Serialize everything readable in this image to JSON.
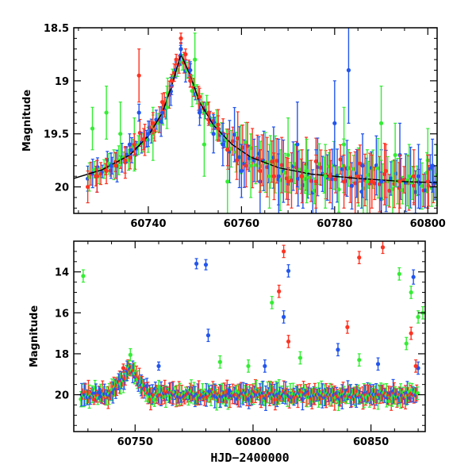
{
  "figure": {
    "background": "#ffffff"
  },
  "chart_data": [
    {
      "type": "scatter",
      "title": "",
      "xlabel": "",
      "ylabel": "Magnitude",
      "xlim": [
        60724,
        60802
      ],
      "ylim": [
        20.25,
        18.5
      ],
      "y_inverted": true,
      "grid": false,
      "xticks": [
        60740,
        60760,
        60780,
        60800
      ],
      "xtick_labels": [
        "60740",
        "60760",
        "60780",
        "60800"
      ],
      "yticks": [
        18.5,
        19,
        19.5,
        20
      ],
      "ytick_labels": [
        "18.5",
        "19",
        "19.5",
        "20"
      ],
      "error_bars": true,
      "series": [
        {
          "color": "#2255ee",
          "marker": "circle",
          "points": [
            [
              60729,
              19.9,
              0.15
            ],
            [
              60732,
              19.8,
              0.12
            ],
            [
              60736,
              19.6,
              0.1
            ],
            [
              60738,
              19.3,
              0.08
            ],
            [
              60740,
              19.5,
              0.12
            ],
            [
              60743,
              19.3,
              0.1
            ],
            [
              60745,
              19.05,
              0.08
            ],
            [
              60747,
              18.7,
              0.06
            ],
            [
              60749,
              18.9,
              0.08
            ],
            [
              60751,
              19.3,
              0.12
            ],
            [
              60754,
              19.5,
              0.18
            ],
            [
              60756,
              19.6,
              0.2
            ],
            [
              60760,
              19.85,
              0.25
            ],
            [
              60764,
              19.95,
              0.3
            ],
            [
              60768,
              19.9,
              0.35
            ],
            [
              60772,
              19.6,
              0.4
            ],
            [
              60776,
              19.95,
              0.3
            ],
            [
              60780,
              19.4,
              0.4
            ],
            [
              60783,
              18.9,
              0.5
            ],
            [
              60786,
              19.8,
              0.3
            ],
            [
              60790,
              19.95,
              0.3
            ],
            [
              60794,
              19.7,
              0.3
            ],
            [
              60798,
              19.9,
              0.3
            ],
            [
              60801,
              19.8,
              0.25
            ]
          ]
        },
        {
          "color": "#33ee33",
          "marker": "circle",
          "points": [
            [
              60728,
              19.45,
              0.2
            ],
            [
              60731,
              19.3,
              0.25
            ],
            [
              60734,
              19.5,
              0.3
            ],
            [
              60737,
              19.6,
              0.25
            ],
            [
              60741,
              19.5,
              0.25
            ],
            [
              60744,
              19.25,
              0.2
            ],
            [
              60750,
              18.8,
              0.25
            ],
            [
              60752,
              19.6,
              0.3
            ],
            [
              60757,
              19.95,
              0.3
            ],
            [
              60762,
              19.8,
              0.3
            ],
            [
              60766,
              19.9,
              0.3
            ],
            [
              60770,
              19.7,
              0.35
            ],
            [
              60774,
              19.85,
              0.3
            ],
            [
              60778,
              19.9,
              0.3
            ],
            [
              60782,
              19.6,
              0.35
            ],
            [
              60787,
              19.95,
              0.3
            ],
            [
              60790,
              19.4,
              0.35
            ],
            [
              60793,
              19.7,
              0.3
            ],
            [
              60796,
              19.9,
              0.3
            ],
            [
              60800,
              19.75,
              0.3
            ]
          ]
        },
        {
          "color": "#ff3322",
          "marker": "circle",
          "points": [
            [
              60727,
              20.0,
              0.15
            ],
            [
              60729,
              19.9,
              0.15
            ],
            [
              60731,
              19.85,
              0.12
            ],
            [
              60733,
              19.8,
              0.12
            ],
            [
              60735,
              19.75,
              0.12
            ],
            [
              60737,
              19.6,
              0.1
            ],
            [
              60738,
              18.95,
              0.25
            ],
            [
              60739,
              19.55,
              0.1
            ],
            [
              60741,
              19.4,
              0.1
            ],
            [
              60743,
              19.2,
              0.08
            ],
            [
              60745,
              19.0,
              0.06
            ],
            [
              60746,
              18.8,
              0.05
            ],
            [
              60747,
              18.6,
              0.05
            ],
            [
              60748,
              18.75,
              0.05
            ],
            [
              60749,
              19.0,
              0.06
            ],
            [
              60751,
              19.15,
              0.08
            ],
            [
              60753,
              19.3,
              0.1
            ],
            [
              60755,
              19.45,
              0.12
            ],
            [
              60757,
              19.65,
              0.15
            ],
            [
              60759,
              19.75,
              0.18
            ],
            [
              60761,
              19.8,
              0.2
            ],
            [
              60764,
              19.85,
              0.2
            ],
            [
              60767,
              19.9,
              0.22
            ],
            [
              60770,
              19.95,
              0.22
            ],
            [
              60773,
              19.9,
              0.25
            ],
            [
              60776,
              19.95,
              0.25
            ],
            [
              60779,
              19.9,
              0.25
            ],
            [
              60782,
              19.95,
              0.25
            ],
            [
              60785,
              19.9,
              0.25
            ],
            [
              60788,
              19.95,
              0.25
            ],
            [
              60791,
              19.85,
              0.25
            ],
            [
              60794,
              19.95,
              0.25
            ],
            [
              60797,
              19.9,
              0.25
            ],
            [
              60800,
              19.95,
              0.25
            ]
          ]
        }
      ],
      "model_curve": {
        "color": "#000000",
        "x": [
          60724,
          60730,
          60736,
          60740,
          60743,
          60745,
          60747,
          60749,
          60751,
          60754,
          60758,
          60762,
          60768,
          60775,
          60785,
          60795,
          60802
        ],
        "y": [
          19.92,
          19.84,
          19.7,
          19.52,
          19.3,
          19.05,
          18.75,
          18.95,
          19.2,
          19.42,
          19.6,
          19.72,
          19.82,
          19.88,
          19.92,
          19.95,
          19.96
        ]
      }
    },
    {
      "type": "scatter",
      "title": "",
      "xlabel": "HJD−2400000",
      "ylabel": "Magnitude",
      "xlim": [
        60724,
        60873
      ],
      "ylim": [
        21.8,
        12.5
      ],
      "y_inverted": true,
      "grid": false,
      "xticks": [
        60750,
        60800,
        60850
      ],
      "xtick_labels": [
        "60750",
        "60800",
        "60850"
      ],
      "yticks": [
        14,
        16,
        18,
        20
      ],
      "ytick_labels": [
        "14",
        "16",
        "18",
        "20"
      ],
      "error_bars": true,
      "series": [
        {
          "color": "#2255ee",
          "marker": "circle",
          "points": [
            [
              60735,
              19.9,
              0.2
            ],
            [
              60760,
              18.6,
              0.2
            ],
            [
              60776,
              13.6,
              0.25
            ],
            [
              60780,
              13.65,
              0.25
            ],
            [
              60781,
              17.1,
              0.3
            ],
            [
              60790,
              19.8,
              0.3
            ],
            [
              60805,
              18.6,
              0.3
            ],
            [
              60813,
              16.2,
              0.3
            ],
            [
              60815,
              13.95,
              0.3
            ],
            [
              60836,
              17.8,
              0.3
            ],
            [
              60853,
              18.5,
              0.3
            ],
            [
              60868,
              14.25,
              0.35
            ],
            [
              60870,
              18.7,
              0.3
            ]
          ]
        },
        {
          "color": "#33ee33",
          "marker": "circle",
          "points": [
            [
              60728,
              14.2,
              0.3
            ],
            [
              60748,
              18.05,
              0.3
            ],
            [
              60760,
              19.6,
              0.3
            ],
            [
              60786,
              18.4,
              0.3
            ],
            [
              60798,
              18.6,
              0.3
            ],
            [
              60808,
              15.5,
              0.3
            ],
            [
              60820,
              18.2,
              0.3
            ],
            [
              60845,
              18.3,
              0.3
            ],
            [
              60862,
              14.1,
              0.3
            ],
            [
              60865,
              17.5,
              0.3
            ],
            [
              60867,
              15.0,
              0.3
            ],
            [
              60870,
              16.2,
              0.3
            ],
            [
              60872,
              16.0,
              0.3
            ]
          ]
        },
        {
          "color": "#ff3322",
          "marker": "circle",
          "points": [
            [
              60745,
              18.7,
              0.2
            ],
            [
              60811,
              14.95,
              0.3
            ],
            [
              60813,
              13.0,
              0.3
            ],
            [
              60815,
              17.4,
              0.3
            ],
            [
              60840,
              16.7,
              0.3
            ],
            [
              60845,
              13.3,
              0.3
            ],
            [
              60855,
              12.8,
              0.3
            ],
            [
              60867,
              17.0,
              0.3
            ],
            [
              60869,
              18.6,
              0.3
            ]
          ]
        }
      ],
      "bulk": {
        "colors": [
          "#33ee33",
          "#2255ee",
          "#ff3322"
        ],
        "peak_x": 60748,
        "peak_y": 18.7,
        "base_y": 20.0
      }
    }
  ]
}
